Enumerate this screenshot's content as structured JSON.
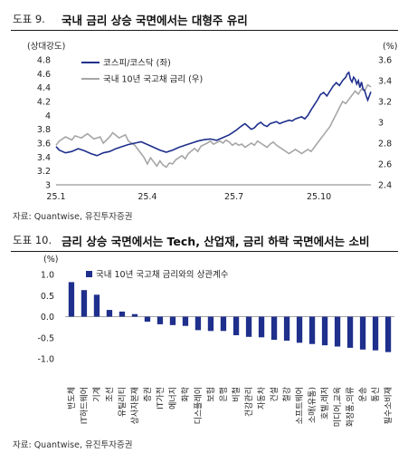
{
  "figures": [
    {
      "number": "도표 9.",
      "title": "국내 금리 상승 국면에서는 대형주 유리",
      "source": "자료: Quantwise, 유진투자증권"
    },
    {
      "number": "도표 10.",
      "title": "금리 상승 국면에서는 Tech, 산업재, 금리 하락 국면에서는 소비",
      "source": "자료: Quantwise, 유진투자증권"
    }
  ],
  "chart_data": [
    {
      "type": "line",
      "left_axis_label": "(상대강도)",
      "right_axis_label": "(%)",
      "x_ticks": [
        "25.1",
        "25.4",
        "25.7",
        "25.10"
      ],
      "y_left_ticks": [
        "3",
        "3.2",
        "3.4",
        "3.6",
        "3.8",
        "4",
        "4.2",
        "4.4",
        "4.6",
        "4.8"
      ],
      "y_right_ticks": [
        "2.4",
        "2.6",
        "2.8",
        "3",
        "3.2",
        "3.4",
        "3.6"
      ],
      "ylim_left": [
        3.0,
        4.8
      ],
      "ylim_right": [
        2.4,
        3.6
      ],
      "colors": {
        "kospi": "#1f2f8c",
        "bond": "#a6a6a6"
      },
      "series": [
        {
          "name": "코스피/코스닥 (좌)",
          "axis": "left",
          "points": [
            [
              0.0,
              3.55
            ],
            [
              0.01,
              3.5
            ],
            [
              0.03,
              3.46
            ],
            [
              0.05,
              3.48
            ],
            [
              0.07,
              3.52
            ],
            [
              0.09,
              3.49
            ],
            [
              0.11,
              3.45
            ],
            [
              0.13,
              3.42
            ],
            [
              0.15,
              3.46
            ],
            [
              0.17,
              3.48
            ],
            [
              0.19,
              3.52
            ],
            [
              0.21,
              3.55
            ],
            [
              0.23,
              3.58
            ],
            [
              0.25,
              3.6
            ],
            [
              0.27,
              3.62
            ],
            [
              0.29,
              3.58
            ],
            [
              0.31,
              3.54
            ],
            [
              0.33,
              3.5
            ],
            [
              0.35,
              3.47
            ],
            [
              0.37,
              3.5
            ],
            [
              0.39,
              3.54
            ],
            [
              0.41,
              3.57
            ],
            [
              0.43,
              3.6
            ],
            [
              0.45,
              3.63
            ],
            [
              0.47,
              3.65
            ],
            [
              0.49,
              3.66
            ],
            [
              0.51,
              3.64
            ],
            [
              0.53,
              3.68
            ],
            [
              0.55,
              3.72
            ],
            [
              0.57,
              3.78
            ],
            [
              0.59,
              3.85
            ],
            [
              0.6,
              3.88
            ],
            [
              0.61,
              3.84
            ],
            [
              0.62,
              3.8
            ],
            [
              0.63,
              3.82
            ],
            [
              0.64,
              3.87
            ],
            [
              0.65,
              3.9
            ],
            [
              0.66,
              3.86
            ],
            [
              0.67,
              3.84
            ],
            [
              0.68,
              3.88
            ],
            [
              0.7,
              3.91
            ],
            [
              0.71,
              3.88
            ],
            [
              0.72,
              3.9
            ],
            [
              0.74,
              3.93
            ],
            [
              0.75,
              3.92
            ],
            [
              0.76,
              3.95
            ],
            [
              0.78,
              3.98
            ],
            [
              0.79,
              3.95
            ],
            [
              0.8,
              4.0
            ],
            [
              0.81,
              4.08
            ],
            [
              0.82,
              4.15
            ],
            [
              0.83,
              4.22
            ],
            [
              0.84,
              4.3
            ],
            [
              0.85,
              4.33
            ],
            [
              0.86,
              4.28
            ],
            [
              0.87,
              4.35
            ],
            [
              0.88,
              4.42
            ],
            [
              0.89,
              4.47
            ],
            [
              0.9,
              4.43
            ],
            [
              0.91,
              4.5
            ],
            [
              0.92,
              4.55
            ],
            [
              0.925,
              4.6
            ],
            [
              0.93,
              4.62
            ],
            [
              0.935,
              4.52
            ],
            [
              0.94,
              4.48
            ],
            [
              0.945,
              4.55
            ],
            [
              0.95,
              4.52
            ],
            [
              0.955,
              4.45
            ],
            [
              0.96,
              4.5
            ],
            [
              0.965,
              4.4
            ],
            [
              0.97,
              4.48
            ],
            [
              0.975,
              4.38
            ],
            [
              0.98,
              4.36
            ],
            [
              0.985,
              4.28
            ],
            [
              0.99,
              4.22
            ],
            [
              1.0,
              4.34
            ]
          ]
        },
        {
          "name": "국내 10년 국고채 금리 (우)",
          "axis": "right",
          "points": [
            [
              0.0,
              2.78
            ],
            [
              0.01,
              2.82
            ],
            [
              0.03,
              2.86
            ],
            [
              0.05,
              2.83
            ],
            [
              0.06,
              2.87
            ],
            [
              0.08,
              2.85
            ],
            [
              0.1,
              2.89
            ],
            [
              0.12,
              2.84
            ],
            [
              0.14,
              2.86
            ],
            [
              0.15,
              2.8
            ],
            [
              0.17,
              2.86
            ],
            [
              0.18,
              2.9
            ],
            [
              0.2,
              2.85
            ],
            [
              0.22,
              2.88
            ],
            [
              0.23,
              2.82
            ],
            [
              0.25,
              2.78
            ],
            [
              0.26,
              2.74
            ],
            [
              0.27,
              2.7
            ],
            [
              0.28,
              2.66
            ],
            [
              0.29,
              2.6
            ],
            [
              0.3,
              2.66
            ],
            [
              0.31,
              2.62
            ],
            [
              0.32,
              2.58
            ],
            [
              0.33,
              2.63
            ],
            [
              0.34,
              2.59
            ],
            [
              0.35,
              2.57
            ],
            [
              0.36,
              2.61
            ],
            [
              0.37,
              2.6
            ],
            [
              0.38,
              2.64
            ],
            [
              0.4,
              2.68
            ],
            [
              0.41,
              2.65
            ],
            [
              0.42,
              2.7
            ],
            [
              0.44,
              2.75
            ],
            [
              0.45,
              2.72
            ],
            [
              0.46,
              2.77
            ],
            [
              0.48,
              2.8
            ],
            [
              0.49,
              2.82
            ],
            [
              0.5,
              2.79
            ],
            [
              0.52,
              2.82
            ],
            [
              0.53,
              2.8
            ],
            [
              0.54,
              2.83
            ],
            [
              0.55,
              2.81
            ],
            [
              0.56,
              2.78
            ],
            [
              0.57,
              2.8
            ],
            [
              0.58,
              2.78
            ],
            [
              0.59,
              2.79
            ],
            [
              0.6,
              2.76
            ],
            [
              0.61,
              2.78
            ],
            [
              0.62,
              2.8
            ],
            [
              0.63,
              2.78
            ],
            [
              0.64,
              2.82
            ],
            [
              0.65,
              2.8
            ],
            [
              0.66,
              2.78
            ],
            [
              0.67,
              2.76
            ],
            [
              0.68,
              2.79
            ],
            [
              0.69,
              2.81
            ],
            [
              0.7,
              2.78
            ],
            [
              0.71,
              2.76
            ],
            [
              0.72,
              2.74
            ],
            [
              0.73,
              2.72
            ],
            [
              0.74,
              2.7
            ],
            [
              0.75,
              2.72
            ],
            [
              0.76,
              2.74
            ],
            [
              0.77,
              2.72
            ],
            [
              0.78,
              2.7
            ],
            [
              0.79,
              2.72
            ],
            [
              0.8,
              2.74
            ],
            [
              0.81,
              2.72
            ],
            [
              0.82,
              2.76
            ],
            [
              0.83,
              2.8
            ],
            [
              0.84,
              2.84
            ],
            [
              0.85,
              2.88
            ],
            [
              0.86,
              2.92
            ],
            [
              0.87,
              2.96
            ],
            [
              0.88,
              3.02
            ],
            [
              0.89,
              3.08
            ],
            [
              0.9,
              3.14
            ],
            [
              0.91,
              3.2
            ],
            [
              0.92,
              3.18
            ],
            [
              0.93,
              3.22
            ],
            [
              0.94,
              3.26
            ],
            [
              0.95,
              3.3
            ],
            [
              0.96,
              3.27
            ],
            [
              0.97,
              3.32
            ],
            [
              0.98,
              3.3
            ],
            [
              0.99,
              3.36
            ],
            [
              1.0,
              3.34
            ]
          ]
        }
      ]
    },
    {
      "type": "bar",
      "y_axis_label": "(%)",
      "legend": "국내 10년 국고채 금리와의 상관계수",
      "y_ticks": [
        "1.0",
        "0.5",
        "0.0",
        "-0.5",
        "-1.0"
      ],
      "ylim": [
        -1.0,
        1.0
      ],
      "color": "#1f2f8c",
      "categories": [
        "반도체",
        "IT하드웨어",
        "기계",
        "조선",
        "유틸리티",
        "상사자본재",
        "증권",
        "IT가전",
        "에너지",
        "화학",
        "디스플레이",
        "보험",
        "은행",
        "비철",
        "건강관리",
        "자동차",
        "건설",
        "철강",
        "소프트웨어",
        "소매(유통)",
        "호텔,레저",
        "미디어,교육",
        "화장품,의류",
        "운송",
        "통신",
        "필수소비재"
      ],
      "values": [
        0.82,
        0.63,
        0.52,
        0.16,
        0.12,
        0.06,
        -0.12,
        -0.18,
        -0.2,
        -0.22,
        -0.32,
        -0.34,
        -0.34,
        -0.44,
        -0.48,
        -0.49,
        -0.55,
        -0.57,
        -0.62,
        -0.65,
        -0.68,
        -0.71,
        -0.74,
        -0.78,
        -0.8,
        -0.84
      ]
    }
  ]
}
